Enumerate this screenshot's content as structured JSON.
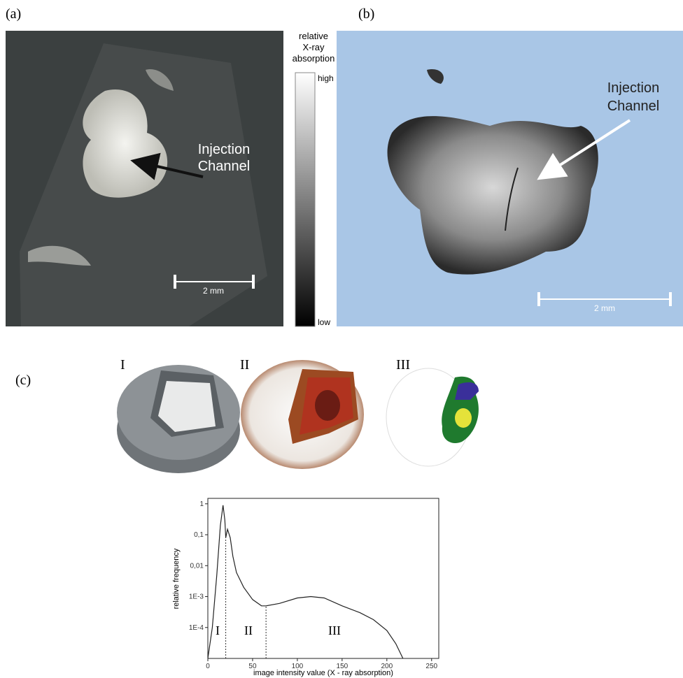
{
  "panels": {
    "a": {
      "label": "(a)",
      "annotation": [
        "Injection",
        "Channel"
      ],
      "scale_bar": "2 mm"
    },
    "colorbar": {
      "title": [
        "relative",
        "X-ray",
        "absorption"
      ],
      "high": "high",
      "low": "low"
    },
    "b": {
      "label": "(b)",
      "annotation": [
        "Injection",
        "Channel"
      ],
      "scale_bar": "2 mm"
    },
    "c": {
      "label": "(c)",
      "renders": [
        "I",
        "II",
        "III"
      ]
    }
  },
  "chart_data": {
    "type": "line",
    "log_y": true,
    "xlabel": "image intensity value (X - ray absorption)",
    "ylabel": "relative frequency",
    "x": [
      0,
      5,
      10,
      14,
      17,
      19,
      20,
      22,
      25,
      28,
      32,
      40,
      50,
      60,
      65,
      80,
      100,
      115,
      130,
      150,
      170,
      185,
      200,
      210,
      218
    ],
    "values": [
      1e-05,
      0.0001,
      0.005,
      0.2,
      0.9,
      0.3,
      0.08,
      0.15,
      0.08,
      0.02,
      0.006,
      0.002,
      0.0008,
      0.0005,
      0.0005,
      0.0006,
      0.0009,
      0.001,
      0.0009,
      0.0005,
      0.0003,
      0.00018,
      8e-05,
      3e-05,
      1e-05
    ],
    "color": "#222222",
    "thresholds": [
      20,
      65
    ],
    "regions": [
      "I",
      "II",
      "III"
    ],
    "xlim": [
      0,
      258
    ],
    "xticks": [
      0,
      50,
      100,
      150,
      200,
      250
    ],
    "ylim": [
      1e-05,
      1.5
    ],
    "yticks": [
      1,
      {
        "value": 0.1,
        "label": "0,1"
      },
      {
        "value": 0.01,
        "label": "0,01"
      },
      {
        "value": 0.001,
        "label": "1E-3"
      },
      {
        "value": 0.0001,
        "label": "1E-4"
      }
    ]
  }
}
